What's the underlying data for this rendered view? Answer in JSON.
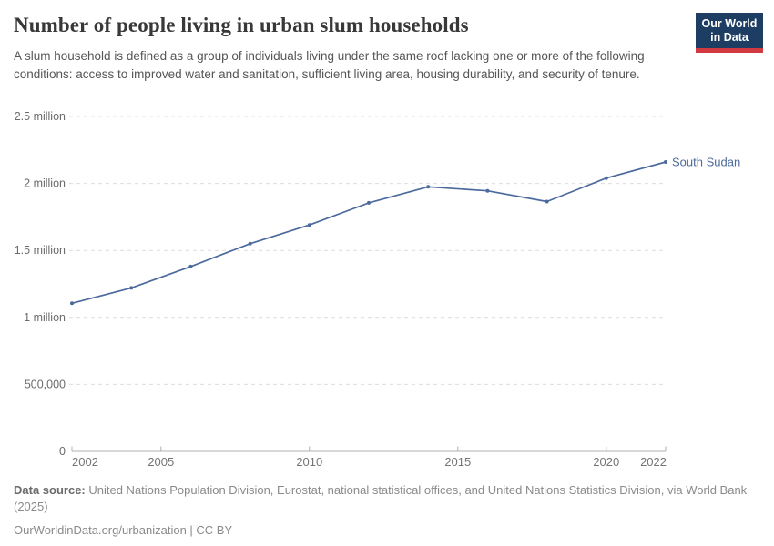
{
  "header": {
    "title": "Number of people living in urban slum households",
    "logo": {
      "line1": "Our World",
      "line2": "in Data"
    }
  },
  "subtitle": "A slum household is defined as a group of individuals living under the same roof lacking one or more of the following conditions: access to improved water and sanitation, sufficient living area, housing durability, and security of tenure.",
  "colors": {
    "series": "#4C6A9C",
    "grid": "#dcdcdc",
    "axis": "#b0b0b0",
    "tick_label": "#757575",
    "logo_navy": "#1d3d63",
    "logo_red": "#d13a40"
  },
  "chart_data": {
    "type": "line",
    "title": "Number of people living in urban slum households",
    "xlabel": "",
    "ylabel": "",
    "xlim": [
      2002,
      2022
    ],
    "ylim": [
      0,
      2500000
    ],
    "grid": "horizontal-dashed",
    "legend_position": "end-of-line-label",
    "series": [
      {
        "name": "South Sudan",
        "color": "#4C6A9C",
        "x": [
          2002,
          2004,
          2006,
          2008,
          2010,
          2012,
          2014,
          2016,
          2018,
          2020,
          2022
        ],
        "values": [
          1105000,
          1220000,
          1380000,
          1550000,
          1690000,
          1855000,
          1975000,
          1945000,
          1865000,
          2040000,
          2160000
        ]
      }
    ],
    "x_ticks": [
      {
        "year": 2002,
        "label": "2002",
        "anchor": "start"
      },
      {
        "year": 2005,
        "label": "2005",
        "anchor": "middle"
      },
      {
        "year": 2010,
        "label": "2010",
        "anchor": "middle"
      },
      {
        "year": 2015,
        "label": "2015",
        "anchor": "middle"
      },
      {
        "year": 2020,
        "label": "2020",
        "anchor": "middle"
      },
      {
        "year": 2022,
        "label": "2022",
        "anchor": "end"
      }
    ],
    "y_ticks": [
      {
        "value": 0,
        "label": "0"
      },
      {
        "value": 500000,
        "label": "500,000"
      },
      {
        "value": 1000000,
        "label": "1 million"
      },
      {
        "value": 1500000,
        "label": "1.5 million"
      },
      {
        "value": 2000000,
        "label": "2 million"
      },
      {
        "value": 2500000,
        "label": "2.5 million"
      }
    ]
  },
  "footer": {
    "datasource_label": "Data source:",
    "datasource_text": " United Nations Population Division, Eurostat, national statistical offices, and United Nations Statistics Division, via World Bank (2025)",
    "link_line": "OurWorldinData.org/urbanization | CC BY"
  }
}
